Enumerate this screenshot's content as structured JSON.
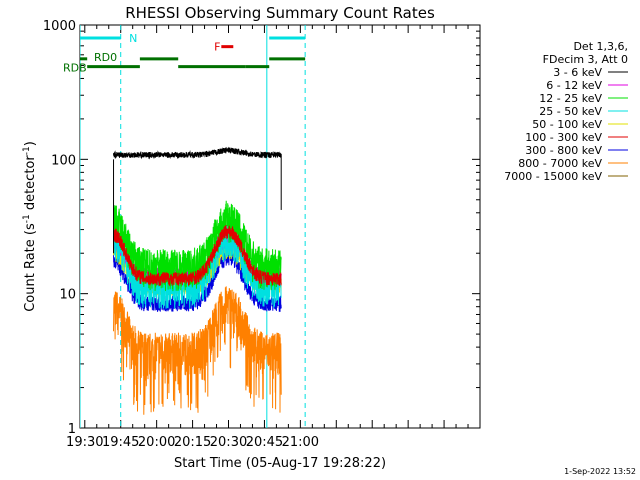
{
  "chart_data": {
    "type": "line",
    "title": "RHESSI Observing Summary Count Rates",
    "xlabel": "Start Time (05-Aug-17 19:28:22)",
    "ylabel_main": "Count Rate (s",
    "ylabel_sup1": "-1",
    "ylabel_mid": " detector",
    "ylabel_sup2": "-1",
    "ylabel_end": ")",
    "yscale": "log",
    "ylim": [
      1,
      1000
    ],
    "xlim_min": [
      1168,
      1335
    ],
    "x_tick_labels": [
      "19:30",
      "19:45",
      "20:00",
      "20:15",
      "20:30",
      "20:45",
      "21:00"
    ],
    "x_tick_minutes": [
      1170,
      1185,
      1200,
      1215,
      1230,
      1245,
      1260
    ],
    "y_tick_labels": [
      "1",
      "10",
      "100",
      "1000"
    ],
    "y_tick_values": [
      1,
      10,
      100,
      1000
    ],
    "legend_header": [
      "Det 1,3,6,",
      "FDecim 3, Att 0"
    ],
    "legend_placement": "right-outside",
    "series": [
      {
        "name": "3 - 6 keV",
        "color": "#000000",
        "base": 108,
        "bump": 0.08,
        "noise": 0.05
      },
      {
        "name": "6 - 12 keV",
        "color": "#e000e0",
        "base": 14,
        "bump": 0.75,
        "noise": 0.12
      },
      {
        "name": "12 - 25 keV",
        "color": "#00e000",
        "base": 16,
        "bump": 1.3,
        "noise": 0.35
      },
      {
        "name": "25 - 50 keV",
        "color": "#00e0e0",
        "base": 11,
        "bump": 1.35,
        "noise": 0.3
      },
      {
        "name": "50 - 100 keV",
        "color": "#e0e000",
        "base": 12,
        "bump": 0.9,
        "noise": 0.2
      },
      {
        "name": "100 - 300 keV",
        "color": "#e00000",
        "base": 13,
        "bump": 1.25,
        "noise": 0.12
      },
      {
        "name": "300 - 800 keV",
        "color": "#0000e0",
        "base": 8.5,
        "bump": 1.2,
        "noise": 0.14
      },
      {
        "name": "800 - 7000 keV",
        "color": "#ff8000",
        "base": 3.8,
        "bump": 1.25,
        "noise": 0.35
      },
      {
        "name": "7000 - 15000 keV",
        "color": "#806000",
        "base": 0,
        "bump": 0,
        "noise": 0
      }
    ],
    "data_start_min": 1182,
    "data_end_min": 1252,
    "bump_center_min": 1230,
    "bump_width_min": 7,
    "dip_center_min": 1207,
    "flag_bars": [
      {
        "label": "N",
        "color": "#00e0e0",
        "level": 800,
        "segments": [
          [
            1167,
            1185
          ],
          [
            1247,
            1262
          ]
        ]
      },
      {
        "label": "RD0",
        "color": "#007000",
        "level": 560,
        "segments": [
          [
            1167,
            1171
          ],
          [
            1193,
            1209
          ],
          [
            1247,
            1262
          ]
        ]
      },
      {
        "label": "RDB",
        "color": "#007000",
        "level": 490,
        "segments": [
          [
            1171,
            1193
          ],
          [
            1209,
            1237
          ],
          [
            1237,
            1247
          ]
        ]
      },
      {
        "label": "F",
        "color": "#e00000",
        "level": 690,
        "segments": [
          [
            1227,
            1232
          ]
        ]
      }
    ],
    "vlines_solid_min": [
      1168,
      1246
    ],
    "vlines_dashed_min": [
      1185,
      1262
    ],
    "footer_date": "1-Sep-2022 13:52"
  }
}
